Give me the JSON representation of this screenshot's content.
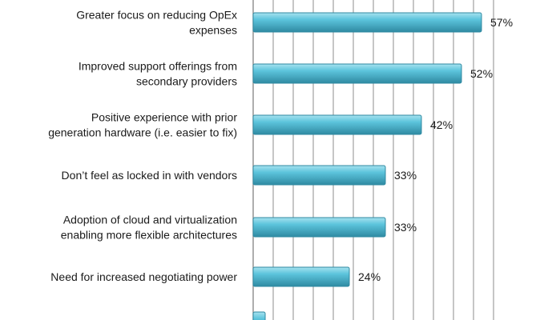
{
  "chart_data": {
    "type": "bar",
    "orientation": "horizontal",
    "categories": [
      [
        "Greater focus on reducing OpEx",
        "expenses"
      ],
      [
        "Improved support offerings from",
        "secondary providers"
      ],
      [
        "Positive experience with prior",
        "generation hardware (i.e. easier to fix)"
      ],
      [
        "Don’t feel as locked in with vendors"
      ],
      [
        "Adoption of cloud and virtualization",
        "enabling more flexible architectures"
      ],
      [
        "Need for increased negotiating power"
      ],
      [
        ""
      ]
    ],
    "values": [
      57,
      52,
      42,
      33,
      33,
      24,
      3
    ],
    "value_labels": [
      "57%",
      "52%",
      "42%",
      "33%",
      "33%",
      "24%",
      ""
    ],
    "unit": "%",
    "xlim": [
      0,
      60
    ],
    "grid": true,
    "colors": {
      "bar": "#5cc4dc",
      "bar_highlight": "#a8e2ef",
      "bar_shadow": "#2f8aa2",
      "grid": "#8c8c8c",
      "text": "#1a1a1a"
    }
  }
}
